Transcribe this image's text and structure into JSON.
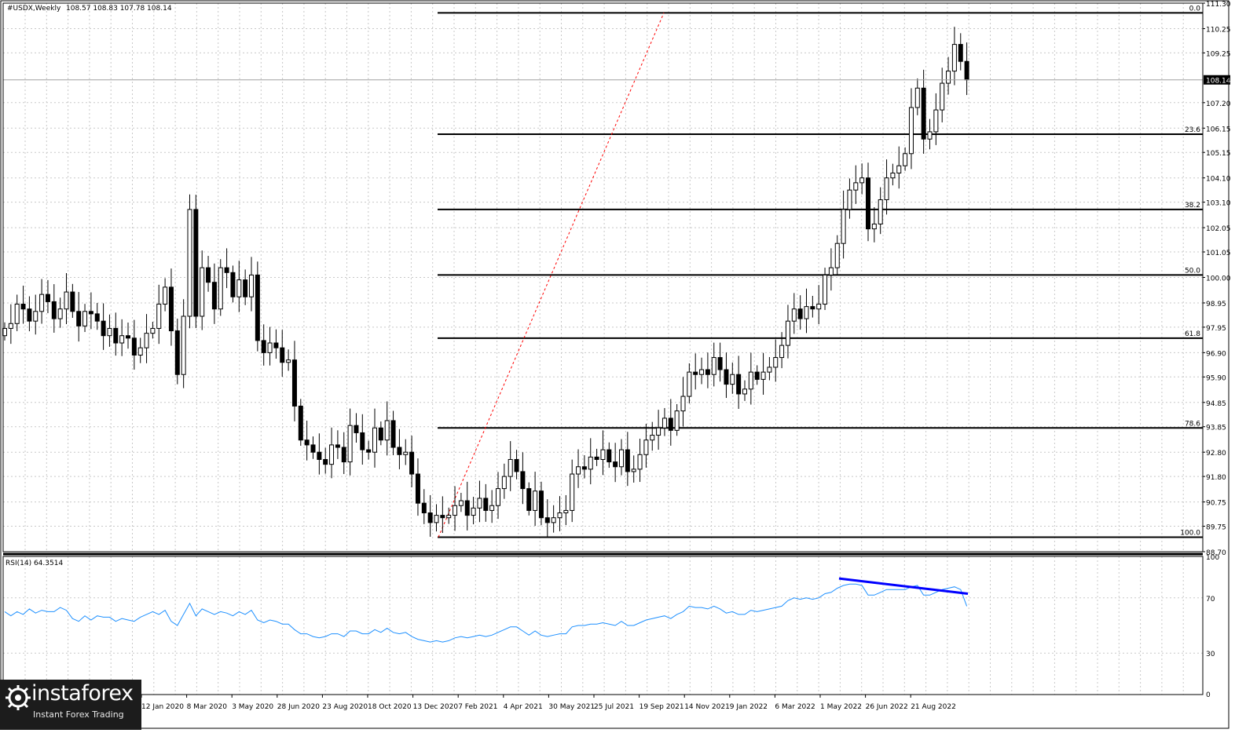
{
  "header": {
    "symbol_tf": "#USDX,Weekly",
    "ohlc": "108.57 108.83 107.78 108.14"
  },
  "rsi_header": {
    "label": "RSI(14) 64.3514"
  },
  "price_axis": {
    "ticks": [
      "111.30",
      "110.25",
      "109.25",
      "108.14",
      "107.20",
      "106.15",
      "105.15",
      "104.10",
      "103.10",
      "102.05",
      "101.05",
      "100.00",
      "98.95",
      "97.95",
      "96.90",
      "95.90",
      "94.85",
      "93.85",
      "92.80",
      "91.80",
      "90.75",
      "89.75",
      "88.70"
    ],
    "current_price": "108.14"
  },
  "rsi_axis": {
    "ticks": [
      "100",
      "70",
      "30",
      "0"
    ]
  },
  "time_axis": {
    "labels": [
      "12 Jan 2020",
      "8 Mar 2020",
      "3 May 2020",
      "28 Jun 2020",
      "23 Aug 2020",
      "18 Oct 2020",
      "13 Dec 2020",
      "7 Feb 2021",
      "4 Apr 2021",
      "30 May 2021",
      "25 Jul 2021",
      "19 Sep 2021",
      "14 Nov 2021",
      "9 Jan 2022",
      "6 Mar 2022",
      "1 May 2022",
      "26 Jun 2022",
      "21 Aug 2022"
    ]
  },
  "fib_levels": [
    {
      "label": "0.0",
      "price": 110.9
    },
    {
      "label": "23.6",
      "price": 105.9
    },
    {
      "label": "38.2",
      "price": 102.8
    },
    {
      "label": "50.0",
      "price": 100.1
    },
    {
      "label": "61.8",
      "price": 97.5
    },
    {
      "label": "78.6",
      "price": 93.8
    },
    {
      "label": "100.0",
      "price": 89.3
    }
  ],
  "watermark": {
    "brand": "instaforex",
    "tagline": "Instant Forex Trading"
  },
  "colors": {
    "background": "#ffffff",
    "grid": "#c8c8c8",
    "candle": "#000000",
    "fib_line": "#000000",
    "trend_line": "#ff0000",
    "rsi_line": "#1e90ff",
    "divergence_line": "#0000ff",
    "price_tag_bg": "#000000"
  },
  "chart_data": {
    "type": "candlestick",
    "title": "#USDX,Weekly",
    "price_range": [
      88.7,
      111.3
    ],
    "rsi_range": [
      0,
      100
    ],
    "grid": true,
    "series": [
      {
        "name": "#USDX",
        "close": [
          97.9,
          98.1,
          98.9,
          98.7,
          98.2,
          98.6,
          99.3,
          99.0,
          98.3,
          98.7,
          99.4,
          98.6,
          98.0,
          98.6,
          98.5,
          98.2,
          97.6,
          97.9,
          97.3,
          97.6,
          97.5,
          96.8,
          97.1,
          97.7,
          97.9,
          98.9,
          99.6,
          97.8,
          96.0,
          98.4,
          102.8,
          98.4,
          100.4,
          99.8,
          98.7,
          100.4,
          100.2,
          99.2,
          99.9,
          99.2,
          100.1,
          97.4,
          96.9,
          97.3,
          97.1,
          96.5,
          96.6,
          94.7,
          93.3,
          93.1,
          92.8,
          92.5,
          92.3,
          93.1,
          93.0,
          92.4,
          93.9,
          93.6,
          92.9,
          92.8,
          93.8,
          93.3,
          94.1,
          93.0,
          92.7,
          92.8,
          91.9,
          90.7,
          90.3,
          89.9,
          90.2,
          90.1,
          90.2,
          90.6,
          90.8,
          90.2,
          90.5,
          90.9,
          90.4,
          90.6,
          91.3,
          91.8,
          92.5,
          92.0,
          91.3,
          90.4,
          91.2,
          90.1,
          89.9,
          90.1,
          90.3,
          90.4,
          91.9,
          92.2,
          92.1,
          92.6,
          92.5,
          92.9,
          92.4,
          92.2,
          92.9,
          92.0,
          92.1,
          92.7,
          93.3,
          93.5,
          93.8,
          94.2,
          93.7,
          94.5,
          95.1,
          96.1,
          96.0,
          96.2,
          96.0,
          96.7,
          96.2,
          95.6,
          96.0,
          95.2,
          95.4,
          96.1,
          95.8,
          96.1,
          96.3,
          96.7,
          97.2,
          98.2,
          98.7,
          98.3,
          98.8,
          98.7,
          98.9,
          100.1,
          100.4,
          101.4,
          102.8,
          103.6,
          103.9,
          104.1,
          102.0,
          102.2,
          103.2,
          104.1,
          104.3,
          104.6,
          105.1,
          107.0,
          107.8,
          105.7,
          106.0,
          106.9,
          108.0,
          108.5,
          109.6,
          108.9,
          108.14
        ]
      }
    ],
    "rsi": [
      60,
      57,
      60,
      58,
      62,
      59,
      61,
      60,
      60,
      63,
      61,
      55,
      53,
      57,
      54,
      57,
      56,
      56,
      53,
      55,
      54,
      53,
      56,
      58,
      60,
      58,
      61,
      53,
      50,
      58,
      66,
      57,
      62,
      60,
      58,
      60,
      59,
      57,
      60,
      58,
      61,
      54,
      52,
      54,
      53,
      51,
      51,
      47,
      44,
      44,
      42,
      41,
      42,
      44,
      44,
      42,
      46,
      46,
      44,
      44,
      47,
      45,
      48,
      45,
      44,
      45,
      42,
      40,
      39,
      38,
      39,
      38,
      39,
      41,
      42,
      41,
      42,
      43,
      42,
      43,
      45,
      47,
      49,
      49,
      46,
      43,
      46,
      43,
      42,
      43,
      44,
      44,
      49,
      50,
      50,
      51,
      51,
      52,
      51,
      50,
      53,
      50,
      50,
      52,
      54,
      55,
      56,
      57,
      55,
      58,
      60,
      64,
      63,
      63,
      62,
      64,
      62,
      59,
      60,
      58,
      58,
      61,
      60,
      61,
      62,
      63,
      64,
      68,
      70,
      69,
      70,
      69,
      70,
      73,
      74,
      77,
      79,
      80,
      80,
      79,
      72,
      72,
      74,
      76,
      76,
      76,
      76,
      78,
      79,
      72,
      72,
      74,
      76,
      77,
      78,
      76,
      64
    ]
  }
}
